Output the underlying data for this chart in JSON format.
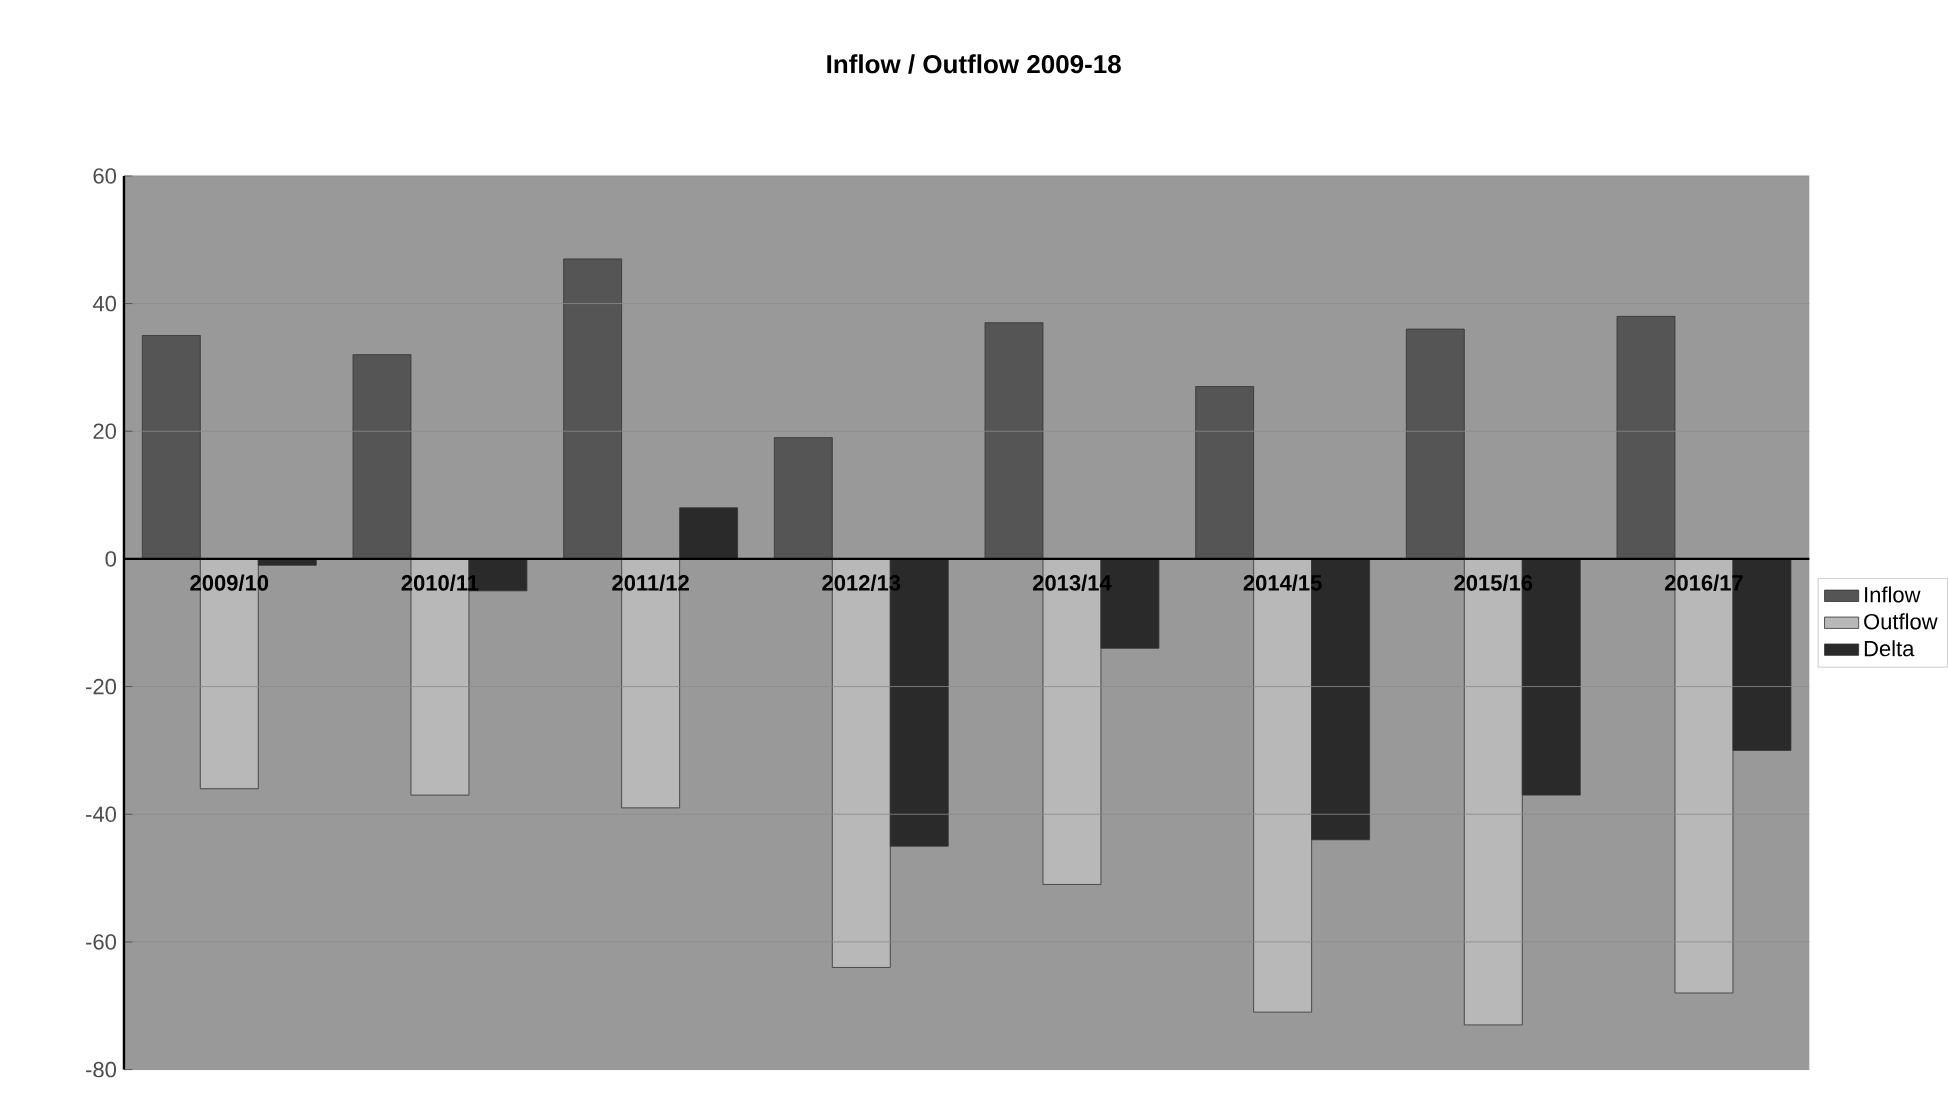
{
  "chart_data": {
    "type": "bar",
    "title": "Inflow / Outflow 2009-18",
    "categories": [
      "2009/10",
      "2010/11",
      "2011/12",
      "2012/13",
      "2013/14",
      "2014/15",
      "2015/16",
      "2016/17"
    ],
    "series": [
      {
        "name": "Inflow",
        "color": "#555555",
        "values": [
          35,
          32,
          47,
          19,
          37,
          27,
          36,
          38
        ]
      },
      {
        "name": "Outflow",
        "color": "#b8b8b8",
        "values": [
          -36,
          -37,
          -39,
          -64,
          -51,
          -71,
          -73,
          -68
        ]
      },
      {
        "name": "Delta",
        "color": "#2a2a2a",
        "values": [
          -1,
          -5,
          8,
          -45,
          -14,
          -44,
          -37,
          -30
        ]
      }
    ],
    "ylim": [
      -80,
      60
    ],
    "yticks": [
      -80,
      -60,
      -40,
      -20,
      0,
      20,
      40,
      60
    ],
    "grid": "y",
    "legend": "right"
  }
}
